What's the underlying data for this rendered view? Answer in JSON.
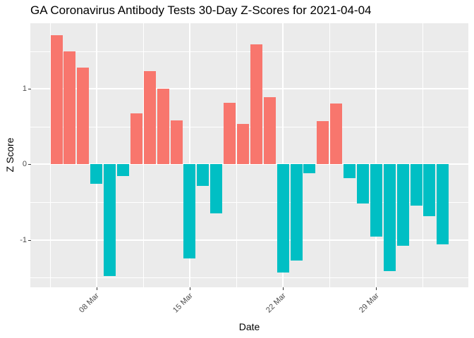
{
  "chart_data": {
    "type": "bar",
    "title": "GA Coronavirus Antibody Tests 30-Day Z-Scores for 2021-04-04",
    "xlabel": "Date",
    "ylabel": "Z Score",
    "x": [
      "2021-03-05",
      "2021-03-06",
      "2021-03-07",
      "2021-03-08",
      "2021-03-09",
      "2021-03-10",
      "2021-03-11",
      "2021-03-12",
      "2021-03-13",
      "2021-03-14",
      "2021-03-15",
      "2021-03-16",
      "2021-03-17",
      "2021-03-18",
      "2021-03-19",
      "2021-03-20",
      "2021-03-21",
      "2021-03-22",
      "2021-03-23",
      "2021-03-24",
      "2021-03-25",
      "2021-03-26",
      "2021-03-27",
      "2021-03-28",
      "2021-03-29",
      "2021-03-30",
      "2021-03-31",
      "2021-04-01",
      "2021-04-02",
      "2021-04-03"
    ],
    "values": [
      1.71,
      1.5,
      1.28,
      -0.26,
      -1.48,
      -0.16,
      0.68,
      1.24,
      1.0,
      0.58,
      -1.25,
      -0.29,
      -0.65,
      0.82,
      0.54,
      1.59,
      0.89,
      -1.43,
      -1.28,
      -0.12,
      0.57,
      0.81,
      -0.18,
      -0.52,
      -0.96,
      -1.42,
      -1.08,
      -0.55,
      -0.69,
      -1.06
    ],
    "ylim": [
      -1.63,
      1.87
    ],
    "y_major_ticks": [
      -1,
      0,
      1
    ],
    "y_minor_ticks": [
      -1.5,
      -0.5,
      0.5,
      1.5
    ],
    "x_major_ticks": [
      {
        "label": "08 Mar",
        "day_index": 3
      },
      {
        "label": "15 Mar",
        "day_index": 10
      },
      {
        "label": "22 Mar",
        "day_index": 17
      },
      {
        "label": "29 Mar",
        "day_index": 24
      }
    ],
    "x_minor_tick_day_indices": [
      -0.5,
      6.5,
      13.5,
      20.5,
      27.5
    ],
    "grid": true,
    "legend": "none",
    "colors": {
      "positive": "#F8766D",
      "negative": "#00BFC4",
      "panel_background": "#EBEBEB",
      "grid": "#FFFFFF",
      "axis_text": "#4D4D4D",
      "tick_mark": "#333333",
      "title_text": "#000000"
    }
  }
}
